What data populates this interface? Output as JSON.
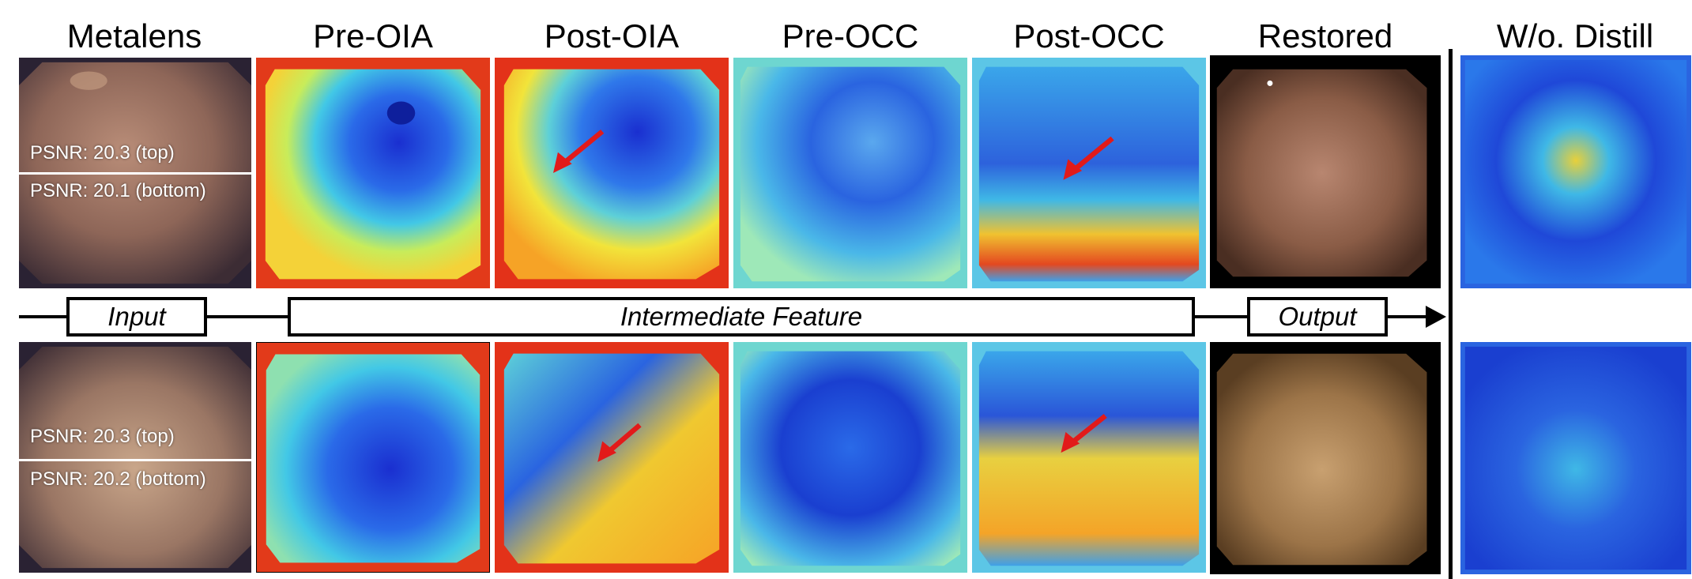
{
  "columns": {
    "metalens": "Metalens",
    "pre_oia": "Pre-OIA",
    "post_oia": "Post-OIA",
    "pre_occ": "Pre-OCC",
    "post_occ": "Post-OCC",
    "restored": "Restored",
    "wo_distill": "W/o. Distill"
  },
  "rows": [
    {
      "psnr_top": "PSNR: 20.3 (top)",
      "psnr_bottom": "PSNR: 20.1 (bottom)"
    },
    {
      "psnr_top": "PSNR: 20.3 (top)",
      "psnr_bottom": "PSNR: 20.2 (bottom)"
    }
  ],
  "flow": {
    "input": "Input",
    "intermediate": "Intermediate Feature",
    "output": "Output"
  },
  "colors": {
    "arrow": "#e21a1a",
    "heat_hot": "#e8301c",
    "heat_warm": "#f6e33c",
    "heat_cool": "#39c8e8",
    "heat_cold": "#1a3fd8",
    "tissue": "#a87a62"
  }
}
